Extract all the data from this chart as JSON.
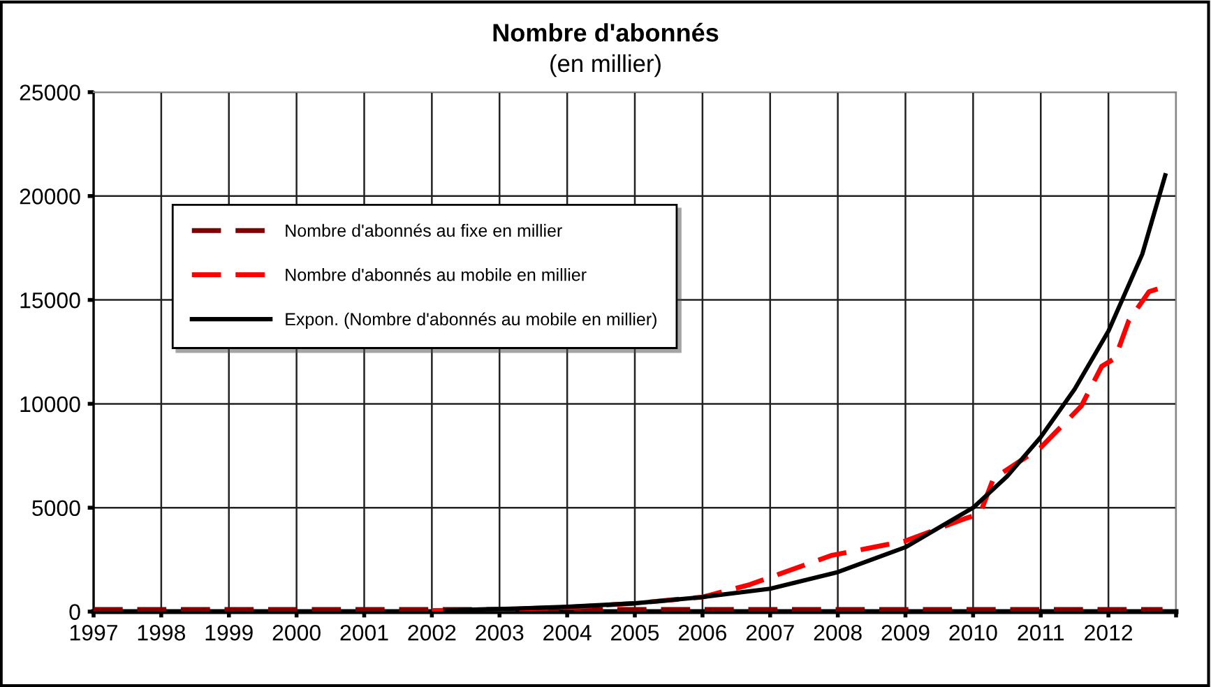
{
  "chart_data": {
    "type": "line",
    "title": "Nombre d'abonnés",
    "subtitle": "(en millier)",
    "xlim": [
      1997,
      2013
    ],
    "xticks": [
      1997,
      1998,
      1999,
      2000,
      2001,
      2002,
      2003,
      2004,
      2005,
      2006,
      2007,
      2008,
      2009,
      2010,
      2011,
      2012,
      {
        "value": 2013,
        "label": null
      }
    ],
    "ylim": [
      0,
      25000
    ],
    "yticks": [
      0,
      5000,
      10000,
      15000,
      20000,
      25000
    ],
    "grid": true,
    "legend": "top left",
    "marker": "none",
    "series": [
      {
        "name": "Nombre d'abonnés au fixe en millier",
        "color": "#800000",
        "line_style": "dashed",
        "x": [
          1997,
          1998,
          1999,
          2000,
          2001,
          2002,
          2003,
          2004,
          2005,
          2006,
          2007,
          2008,
          2009,
          2010,
          2011,
          2012,
          2012.8
        ],
        "values": [
          100,
          100,
          100,
          100,
          100,
          100,
          100,
          100,
          100,
          100,
          100,
          100,
          100,
          100,
          100,
          100,
          100
        ]
      },
      {
        "name": "Nombre d'abonnés au mobile en millier",
        "color": "#ff0000",
        "line_style": "dashed",
        "x": [
          2002,
          2003,
          2004,
          2005,
          2006,
          2006.7,
          2007.9,
          2009,
          2009.9,
          2010.1,
          2010.3,
          2011,
          2011.6,
          2011.9,
          2012.1,
          2012.3,
          2012.6,
          2012.8
        ],
        "values": [
          50,
          100,
          200,
          400,
          700,
          1300,
          2700,
          3400,
          4500,
          4700,
          6400,
          7900,
          9900,
          11800,
          12200,
          14000,
          15400,
          15600
        ]
      },
      {
        "name": "Expon. (Nombre d'abonnés au mobile en millier)",
        "color": "#000000",
        "line_style": "solid",
        "x": [
          2002.2,
          2003,
          2004,
          2005,
          2006,
          2007,
          2008,
          2009,
          2010,
          2010.5,
          2011,
          2011.5,
          2012,
          2012.5,
          2012.84
        ],
        "values": [
          70,
          120,
          230,
          400,
          700,
          1100,
          1900,
          3100,
          5000,
          6500,
          8400,
          10700,
          13500,
          17200,
          21000
        ]
      }
    ]
  }
}
